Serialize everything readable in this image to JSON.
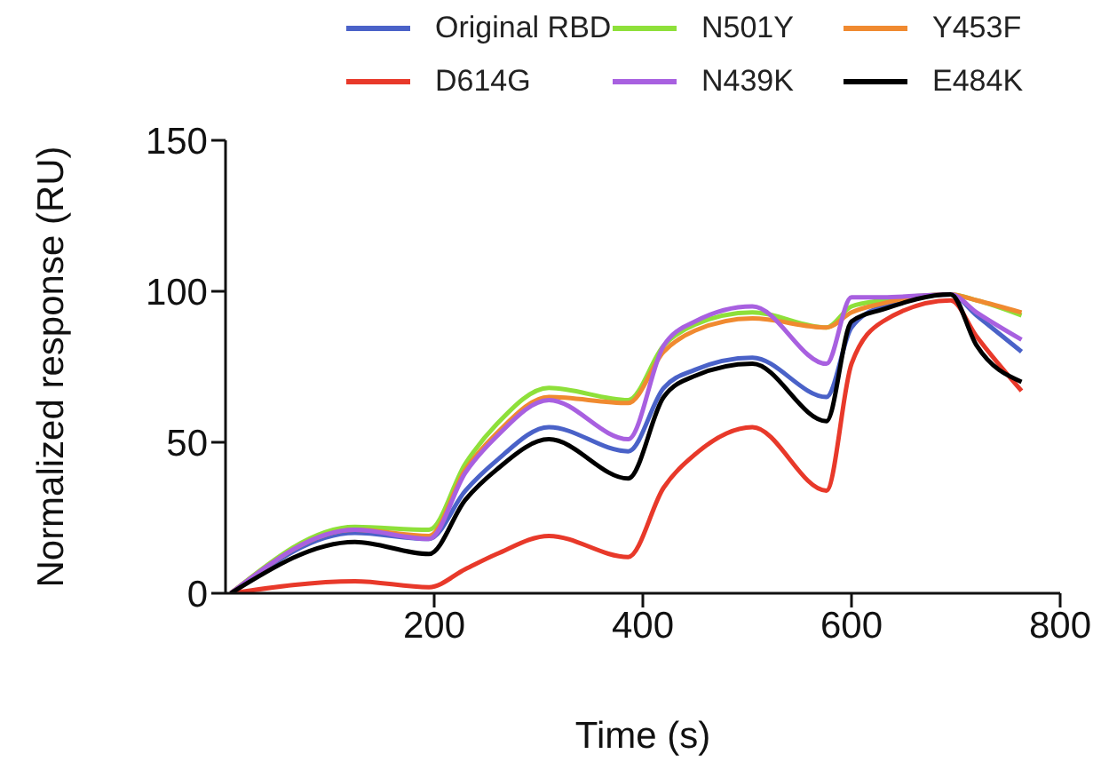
{
  "chart_data": {
    "type": "line",
    "xlabel": "Time (s)",
    "ylabel": "Normalized response (RU)",
    "x": [
      5,
      124,
      195,
      230,
      260,
      310,
      386,
      420,
      450,
      505,
      576,
      600,
      630,
      695,
      720,
      763
    ],
    "xlim": [
      0,
      800
    ],
    "xticks": [
      200,
      400,
      600,
      800
    ],
    "ylim": [
      0,
      150
    ],
    "yticks": [
      0,
      50,
      100,
      150
    ],
    "grid": false,
    "legend": "top",
    "marker": "none",
    "line_style": "solid",
    "series": [
      {
        "name": "Original RBD",
        "color": "#4a62c8",
        "values": [
          0,
          20,
          18,
          34,
          44,
          55,
          47,
          68,
          74,
          78,
          65,
          88,
          95,
          99,
          92,
          80
        ]
      },
      {
        "name": "N501Y",
        "color": "#8ee03a",
        "values": [
          0,
          22,
          21,
          43,
          56,
          68,
          64,
          82,
          89,
          93,
          88,
          95,
          97,
          99,
          97,
          92
        ]
      },
      {
        "name": "Y453F",
        "color": "#f08a30",
        "values": [
          0,
          21,
          19,
          41,
          53,
          65,
          63,
          80,
          87,
          91,
          88,
          93,
          96,
          99,
          97,
          93
        ]
      },
      {
        "name": "D614G",
        "color": "#e8392a",
        "values": [
          0,
          4,
          2,
          8,
          13,
          19,
          12,
          35,
          46,
          55,
          34,
          76,
          90,
          97,
          85,
          67
        ]
      },
      {
        "name": "N439K",
        "color": "#a860e0",
        "values": [
          0,
          21,
          18,
          40,
          52,
          64,
          51,
          82,
          90,
          95,
          76,
          98,
          98,
          99,
          93,
          84
        ]
      },
      {
        "name": "E484K",
        "color": "#000000",
        "values": [
          0,
          17,
          13,
          31,
          41,
          51,
          38,
          65,
          72,
          76,
          57,
          90,
          94,
          99,
          82,
          70
        ]
      }
    ]
  }
}
